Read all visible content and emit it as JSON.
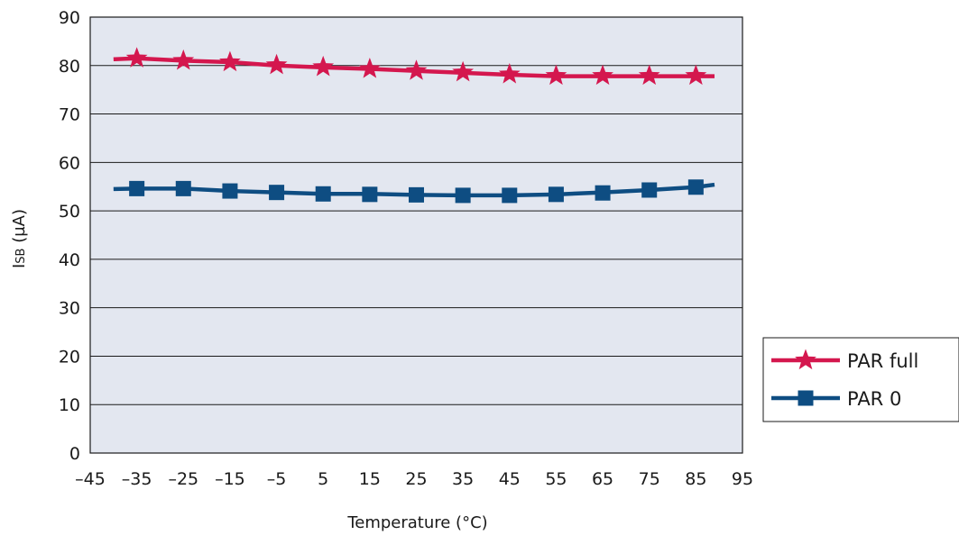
{
  "chart_data": {
    "type": "line",
    "xlabel": "Temperature (°C)",
    "ylabel_main": "I",
    "ylabel_sub": "SB",
    "ylabel_unit": " (µA)",
    "xlim": [
      -45,
      95
    ],
    "ylim": [
      0,
      90
    ],
    "x_ticks": [
      -45,
      -35,
      -25,
      -15,
      -5,
      5,
      15,
      25,
      35,
      45,
      55,
      65,
      75,
      85,
      95
    ],
    "x_tick_labels": [
      "–45",
      "–35",
      "–25",
      "–15",
      "–5",
      "5",
      "15",
      "25",
      "35",
      "45",
      "55",
      "65",
      "75",
      "85",
      "95"
    ],
    "y_ticks": [
      0,
      10,
      20,
      30,
      40,
      50,
      60,
      70,
      80,
      90
    ],
    "y_tick_labels": [
      "0",
      "10",
      "20",
      "30",
      "40",
      "50",
      "60",
      "70",
      "80",
      "90"
    ],
    "grid": "horizontal",
    "plot_background": "#e3e7f0",
    "legend_position": "right",
    "series": [
      {
        "name": "PAR full",
        "color": "#d4174e",
        "marker": "star",
        "line_x": [
          -40,
          -35,
          -25,
          -15,
          -5,
          5,
          15,
          25,
          35,
          45,
          55,
          65,
          75,
          85,
          89
        ],
        "line_y": [
          81.3,
          81.5,
          81.0,
          80.7,
          80.0,
          79.6,
          79.3,
          78.9,
          78.5,
          78.1,
          77.8,
          77.8,
          77.8,
          77.8,
          77.8
        ],
        "marker_x": [
          -35,
          -25,
          -15,
          -5,
          5,
          15,
          25,
          35,
          45,
          55,
          65,
          75,
          85
        ],
        "marker_y": [
          81.5,
          81.0,
          80.7,
          80.1,
          79.7,
          79.3,
          78.9,
          78.6,
          78.2,
          77.9,
          77.9,
          77.9,
          77.9
        ]
      },
      {
        "name": "PAR 0",
        "color": "#0e4d82",
        "marker": "square",
        "line_x": [
          -40,
          -35,
          -25,
          -15,
          -5,
          5,
          15,
          25,
          35,
          45,
          55,
          65,
          75,
          85,
          89
        ],
        "line_y": [
          54.5,
          54.6,
          54.6,
          54.1,
          53.8,
          53.5,
          53.5,
          53.3,
          53.2,
          53.2,
          53.4,
          53.8,
          54.3,
          54.9,
          55.4
        ],
        "marker_x": [
          -35,
          -25,
          -15,
          -5,
          5,
          15,
          25,
          35,
          45,
          55,
          65,
          75,
          85
        ],
        "marker_y": [
          54.6,
          54.6,
          54.1,
          53.8,
          53.5,
          53.4,
          53.3,
          53.2,
          53.2,
          53.4,
          53.7,
          54.3,
          54.9
        ]
      }
    ]
  }
}
